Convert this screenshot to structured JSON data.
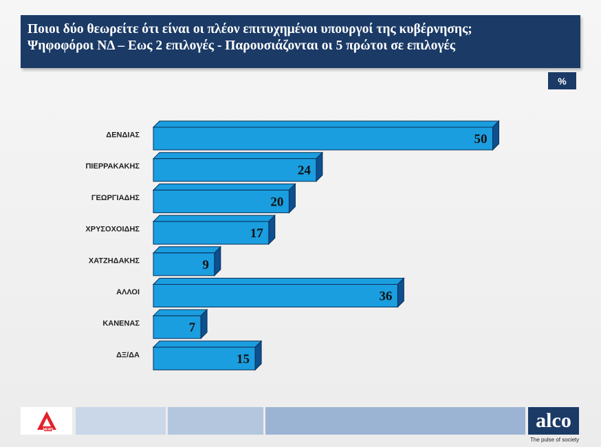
{
  "header": {
    "title_line1": "Ποιοι δύο θεωρείτε ότι είναι οι πλέον επιτυχημένοι υπουργοί της κυβέρνησης;",
    "title_line2": "Ψηφοφόροι ΝΔ – Εως 2 επιλογές - Παρουσιάζονται οι 5 πρώτοι σε επιλογές"
  },
  "unit_label": "%",
  "chart_data": {
    "type": "bar",
    "orientation": "horizontal",
    "categories": [
      "ΔΕΝΔΙΑΣ",
      "ΠΙΕΡΡΑΚΑΚΗΣ",
      "ΓΕΩΡΓΙΑΔΗΣ",
      "ΧΡΥΣΟΧΟΙΔΗΣ",
      "ΧΑΤΖΗΔΑΚΗΣ",
      "ΑΛΛΟΙ",
      "ΚΑΝΕΝΑΣ",
      "ΔΞ/ΔΑ"
    ],
    "values": [
      50,
      24,
      20,
      17,
      9,
      36,
      7,
      15
    ],
    "grid": false,
    "bar_color": "#1a9ee0",
    "bar_side_color": "#0d4f8f"
  },
  "footer": {
    "brand_left": "NEWS",
    "brand_right": "alco",
    "tagline": "The pulse of society"
  },
  "colors": {
    "header_bg": "#1b3a66",
    "footer_light": "#c9d7e8",
    "footer_mid": "#b3c6de",
    "footer_dark": "#9cb4d3",
    "alpha_red": "#e2202a"
  }
}
